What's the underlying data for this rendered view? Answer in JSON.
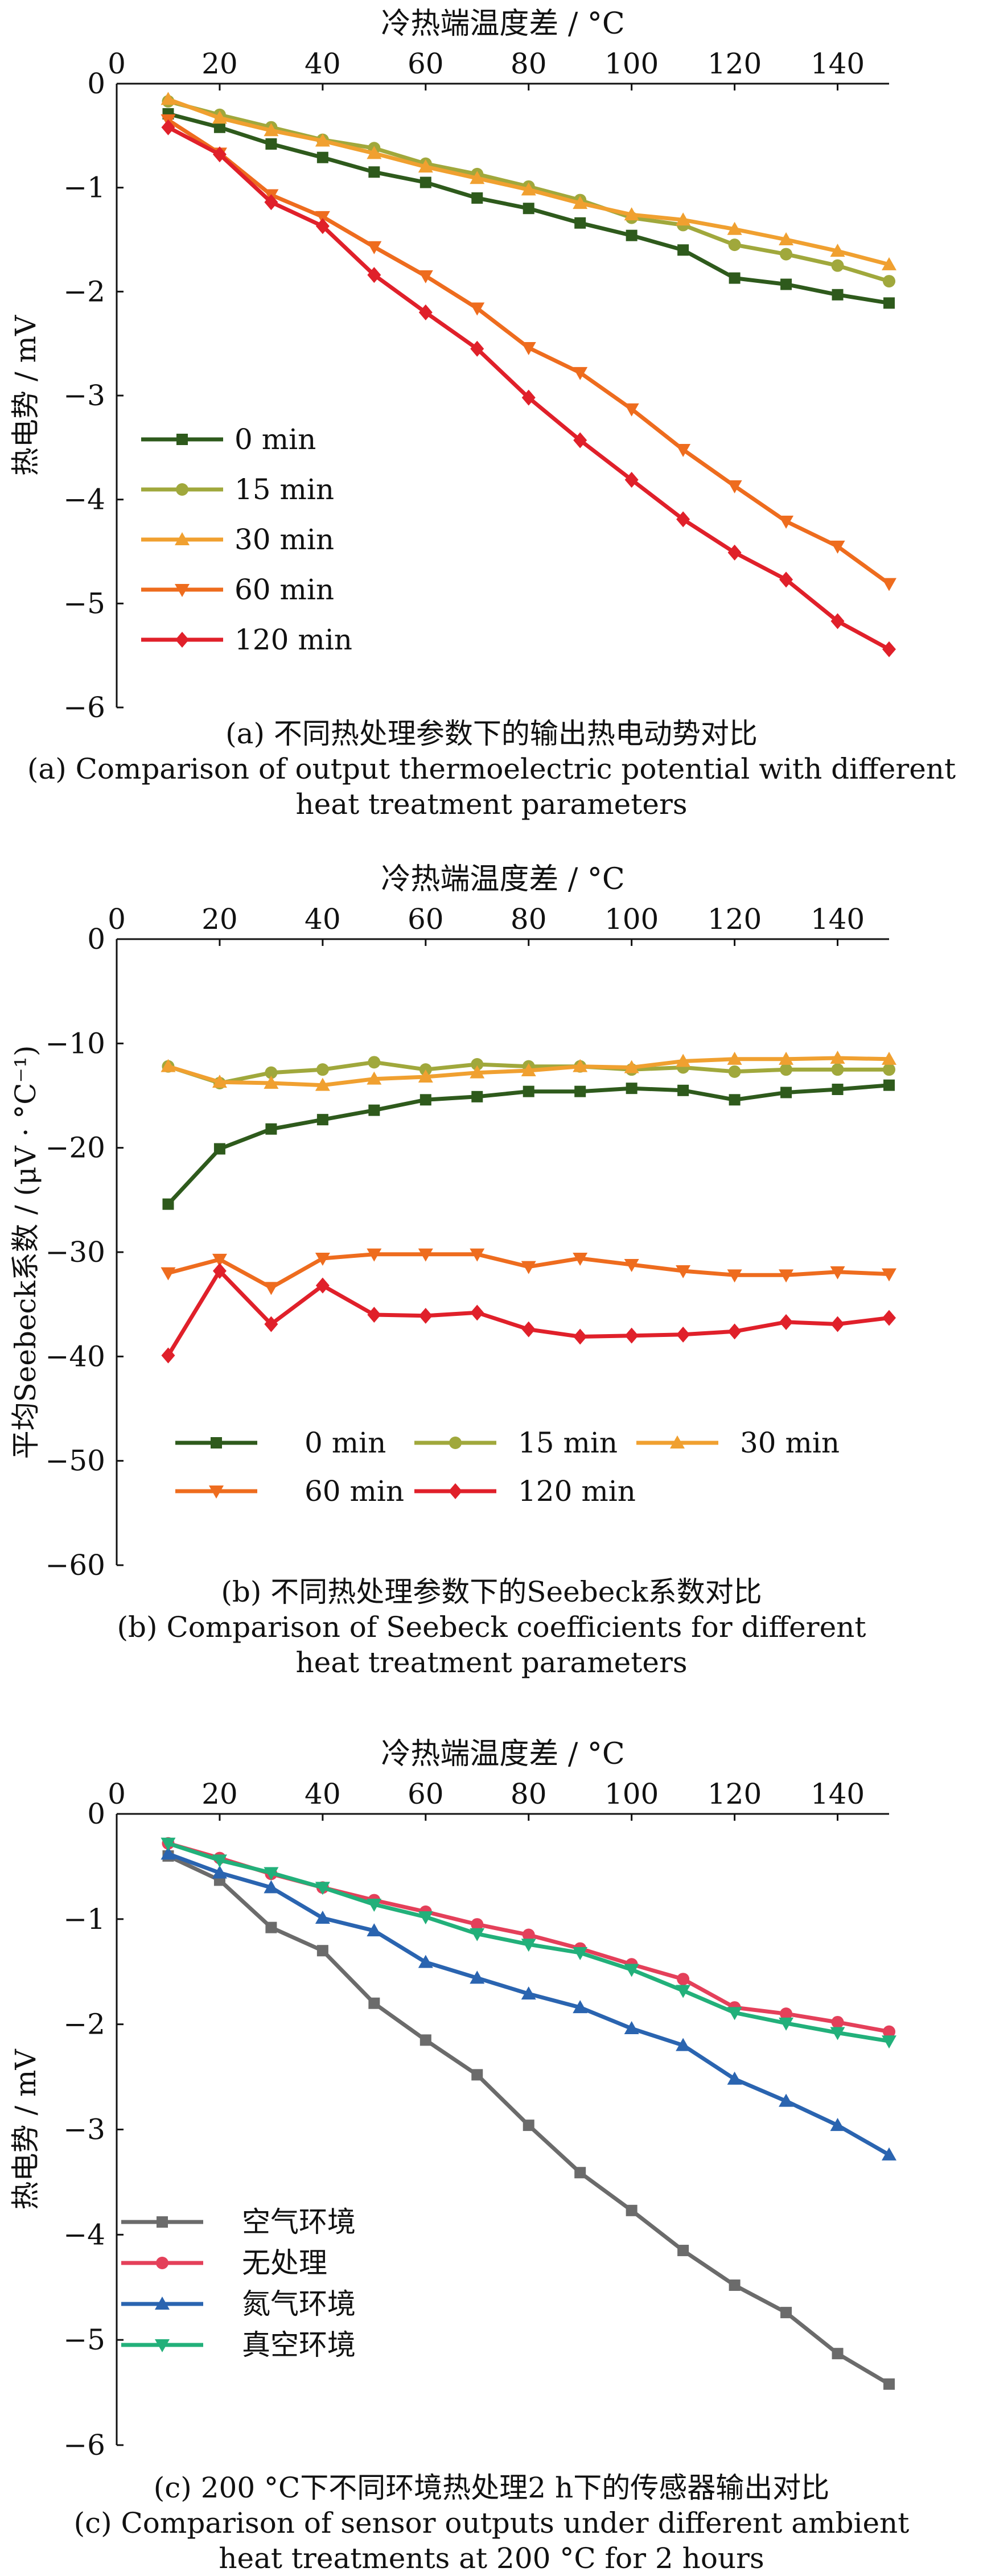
{
  "chart_data": [
    {
      "type": "line",
      "xlabel": "冷热端温度差 / °C",
      "ylabel": "热电势 / mV",
      "xlim": [
        0,
        150
      ],
      "ylim": [
        -6,
        0
      ],
      "xticks": [
        0,
        20,
        40,
        60,
        80,
        100,
        120,
        140
      ],
      "yticks": [
        0,
        -1,
        -2,
        -3,
        -4,
        -5,
        -6
      ],
      "x_axis_position": "top",
      "grid": false,
      "legend_position": "lower-left",
      "x": [
        10,
        20,
        30,
        40,
        50,
        60,
        70,
        80,
        90,
        100,
        110,
        120,
        130,
        140,
        150
      ],
      "series": [
        {
          "name": "0 min",
          "color": "#2e5a1c",
          "marker": "square",
          "values": [
            -0.29,
            -0.42,
            -0.58,
            -0.71,
            -0.85,
            -0.95,
            -1.1,
            -1.2,
            -1.34,
            -1.46,
            -1.6,
            -1.87,
            -1.93,
            -2.03,
            -2.11
          ]
        },
        {
          "name": "15 min",
          "color": "#a0a83c",
          "marker": "circle",
          "values": [
            -0.17,
            -0.3,
            -0.42,
            -0.54,
            -0.62,
            -0.77,
            -0.87,
            -0.99,
            -1.12,
            -1.29,
            -1.36,
            -1.55,
            -1.64,
            -1.75,
            -1.9
          ]
        },
        {
          "name": "30 min",
          "color": "#f0a030",
          "marker": "triangle-up",
          "values": [
            -0.15,
            -0.33,
            -0.45,
            -0.55,
            -0.67,
            -0.8,
            -0.91,
            -1.02,
            -1.15,
            -1.26,
            -1.31,
            -1.4,
            -1.5,
            -1.61,
            -1.74
          ]
        },
        {
          "name": "60 min",
          "color": "#ee6c1e",
          "marker": "triangle-down",
          "values": [
            -0.35,
            -0.67,
            -1.07,
            -1.28,
            -1.57,
            -1.85,
            -2.16,
            -2.54,
            -2.78,
            -3.13,
            -3.52,
            -3.87,
            -4.21,
            -4.45,
            -4.81
          ]
        },
        {
          "name": "120 min",
          "color": "#e0202a",
          "marker": "diamond",
          "values": [
            -0.42,
            -0.68,
            -1.14,
            -1.37,
            -1.84,
            -2.2,
            -2.55,
            -3.02,
            -3.43,
            -3.81,
            -4.19,
            -4.51,
            -4.77,
            -5.17,
            -5.44
          ]
        }
      ],
      "caption_zh": "(a) 不同热处理参数下的输出热电动势对比",
      "caption_en_1": "(a) Comparison of output thermoelectric potential with different",
      "caption_en_2": "heat treatment parameters"
    },
    {
      "type": "line",
      "xlabel": "冷热端温度差 / °C",
      "ylabel": "平均Seebeck系数 / (μV · °C⁻¹)",
      "xlim": [
        0,
        150
      ],
      "ylim": [
        -60,
        0
      ],
      "xticks": [
        0,
        20,
        40,
        60,
        80,
        100,
        120,
        140
      ],
      "yticks": [
        0,
        -10,
        -20,
        -30,
        -40,
        -50,
        -60
      ],
      "x_axis_position": "top",
      "grid": false,
      "legend_position": "lower-center",
      "x": [
        10,
        20,
        30,
        40,
        50,
        60,
        70,
        80,
        90,
        100,
        110,
        120,
        130,
        140,
        150
      ],
      "series": [
        {
          "name": "0 min",
          "color": "#2e5a1c",
          "marker": "square",
          "values": [
            -25.4,
            -20.1,
            -18.2,
            -17.3,
            -16.4,
            -15.4,
            -15.1,
            -14.6,
            -14.6,
            -14.3,
            -14.5,
            -15.4,
            -14.7,
            -14.4,
            -14.0
          ]
        },
        {
          "name": "15 min",
          "color": "#a0a83c",
          "marker": "circle",
          "values": [
            -12.2,
            -13.8,
            -12.8,
            -12.5,
            -11.8,
            -12.5,
            -12.0,
            -12.2,
            -12.2,
            -12.5,
            -12.3,
            -12.7,
            -12.5,
            -12.5,
            -12.5
          ]
        },
        {
          "name": "30 min",
          "color": "#f0a030",
          "marker": "triangle-up",
          "values": [
            -12.2,
            -13.7,
            -13.8,
            -14.0,
            -13.4,
            -13.2,
            -12.8,
            -12.6,
            -12.2,
            -12.3,
            -11.7,
            -11.5,
            -11.5,
            -11.4,
            -11.5
          ]
        },
        {
          "name": "60 min",
          "color": "#ee6c1e",
          "marker": "triangle-down",
          "values": [
            -32.0,
            -30.7,
            -33.4,
            -30.6,
            -30.2,
            -30.2,
            -30.2,
            -31.4,
            -30.6,
            -31.2,
            -31.8,
            -32.2,
            -32.2,
            -31.9,
            -32.1
          ]
        },
        {
          "name": "120 min",
          "color": "#e0202a",
          "marker": "diamond",
          "values": [
            -39.9,
            -31.8,
            -36.9,
            -33.2,
            -36.0,
            -36.1,
            -35.8,
            -37.4,
            -38.1,
            -38.0,
            -37.9,
            -37.6,
            -36.7,
            -36.9,
            -36.3
          ]
        }
      ],
      "caption_zh": "(b) 不同热处理参数下的Seebeck系数对比",
      "caption_en_1": "(b) Comparison of Seebeck coefficients for different",
      "caption_en_2": "heat treatment parameters"
    },
    {
      "type": "line",
      "xlabel": "冷热端温度差 / °C",
      "ylabel": "热电势 / mV",
      "xlim": [
        0,
        150
      ],
      "ylim": [
        -6,
        0
      ],
      "xticks": [
        0,
        20,
        40,
        60,
        80,
        100,
        120,
        140
      ],
      "yticks": [
        0,
        -1,
        -2,
        -3,
        -4,
        -5,
        -6
      ],
      "x_axis_position": "top",
      "grid": false,
      "legend_position": "lower-left",
      "x": [
        10,
        20,
        30,
        40,
        50,
        60,
        70,
        80,
        90,
        100,
        110,
        120,
        130,
        140,
        150
      ],
      "series": [
        {
          "name": "空气环境",
          "color": "#6b6b6b",
          "marker": "square",
          "values": [
            -0.4,
            -0.63,
            -1.08,
            -1.3,
            -1.8,
            -2.15,
            -2.48,
            -2.96,
            -3.41,
            -3.77,
            -4.15,
            -4.48,
            -4.74,
            -5.13,
            -5.42
          ]
        },
        {
          "name": "无处理",
          "color": "#e4405a",
          "marker": "circle",
          "values": [
            -0.28,
            -0.42,
            -0.57,
            -0.7,
            -0.82,
            -0.93,
            -1.05,
            -1.15,
            -1.28,
            -1.43,
            -1.57,
            -1.84,
            -1.9,
            -1.98,
            -2.07
          ]
        },
        {
          "name": "氮气环境",
          "color": "#2a64b0",
          "marker": "triangle-up",
          "values": [
            -0.38,
            -0.56,
            -0.7,
            -0.99,
            -1.11,
            -1.41,
            -1.56,
            -1.71,
            -1.84,
            -2.04,
            -2.2,
            -2.52,
            -2.73,
            -2.96,
            -3.24
          ]
        },
        {
          "name": "真空环境",
          "color": "#22b07a",
          "marker": "triangle-down",
          "values": [
            -0.28,
            -0.44,
            -0.56,
            -0.7,
            -0.86,
            -0.98,
            -1.14,
            -1.24,
            -1.32,
            -1.48,
            -1.68,
            -1.89,
            -1.99,
            -2.08,
            -2.16
          ]
        }
      ],
      "caption_zh": "(c) 200 °C下不同环境热处理2 h下的传感器输出对比",
      "caption_en_1": "(c) Comparison of sensor outputs under different ambient",
      "caption_en_2": "heat treatments at 200 °C for 2 hours"
    }
  ]
}
